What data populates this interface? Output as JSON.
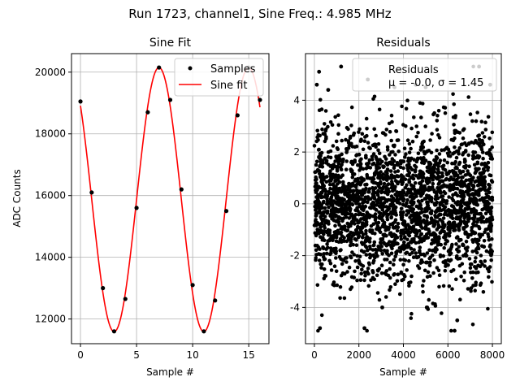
{
  "suptitle": "Run 1723, channel1, Sine Freq.: 4.985 MHz",
  "chart_data": [
    {
      "type": "line",
      "title": "Sine Fit",
      "xlabel": "Sample #",
      "ylabel": "ADC Counts",
      "xlim": [
        -0.8,
        16.8
      ],
      "ylim": [
        11200,
        20600
      ],
      "xticks": [
        0,
        5,
        10,
        15
      ],
      "yticks": [
        12000,
        14000,
        16000,
        18000,
        20000
      ],
      "grid": true,
      "legend_position": "upper right",
      "series": [
        {
          "name": "Samples",
          "style": "markers",
          "color": "#000000",
          "x": [
            0,
            1,
            2,
            3,
            4,
            5,
            6,
            7,
            8,
            9,
            10,
            11,
            12,
            13,
            14,
            15,
            16
          ],
          "y": [
            19050,
            16100,
            13000,
            11600,
            12650,
            15600,
            18700,
            20150,
            19100,
            16200,
            13100,
            11600,
            12600,
            15500,
            18600,
            20150,
            19100
          ]
        },
        {
          "name": "Sine fit",
          "style": "line",
          "color": "#ff0000",
          "model": {
            "offset": 15870,
            "amplitude": 4280,
            "period": 7.99,
            "phase_sample": 5.0
          }
        }
      ]
    },
    {
      "type": "scatter",
      "title": "Residuals",
      "xlabel": "Sample #",
      "ylabel": "",
      "xlim": [
        -400,
        8400
      ],
      "ylim": [
        -5.4,
        5.8
      ],
      "xticks": [
        0,
        2000,
        4000,
        6000,
        8000
      ],
      "yticks": [
        -4,
        -2,
        0,
        2,
        4
      ],
      "grid": true,
      "legend_position": "upper right",
      "series": [
        {
          "name": "Residuals",
          "color": "#000000",
          "summary": {
            "count": 8000,
            "mean": -0.0,
            "std": 1.45,
            "min": -4.9,
            "max": 5.3
          },
          "highlighted_points": [
            [
              110,
              4.6
            ],
            [
              210,
              5.1
            ],
            [
              250,
              -4.8
            ],
            [
              620,
              4.4
            ],
            [
              1200,
              5.3
            ],
            [
              2250,
              -4.8
            ],
            [
              2400,
              4.8
            ],
            [
              3050,
              -4.0
            ],
            [
              3600,
              4.5
            ],
            [
              4550,
              4.6
            ],
            [
              5000,
              4.5
            ],
            [
              5050,
              -4.0
            ],
            [
              6300,
              -4.9
            ],
            [
              6420,
              -4.5
            ],
            [
              7400,
              5.3
            ],
            [
              7900,
              4.6
            ]
          ]
        }
      ],
      "annotation_line": "μ = -0.0, σ = 1.45"
    }
  ]
}
